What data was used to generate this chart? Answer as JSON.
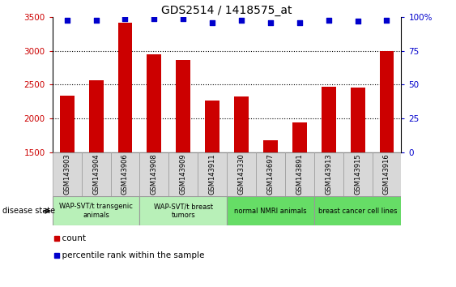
{
  "title": "GDS2514 / 1418575_at",
  "samples": [
    "GSM143903",
    "GSM143904",
    "GSM143906",
    "GSM143908",
    "GSM143909",
    "GSM143911",
    "GSM143330",
    "GSM143697",
    "GSM143891",
    "GSM143913",
    "GSM143915",
    "GSM143916"
  ],
  "counts": [
    2340,
    2560,
    3420,
    2950,
    2870,
    2270,
    2330,
    1680,
    1940,
    2470,
    2460,
    3000
  ],
  "percentiles": [
    98,
    98,
    99,
    99,
    99,
    96,
    98,
    96,
    96,
    98,
    97,
    98
  ],
  "bar_color": "#cc0000",
  "dot_color": "#0000cc",
  "ylim_left": [
    1500,
    3500
  ],
  "ylim_right": [
    0,
    100
  ],
  "yticks_left": [
    1500,
    2000,
    2500,
    3000,
    3500
  ],
  "yticks_right": [
    0,
    25,
    50,
    75,
    100
  ],
  "ytick_labels_right": [
    "0",
    "25",
    "50",
    "75",
    "100%"
  ],
  "gridlines": [
    2000,
    2500,
    3000
  ],
  "groups": [
    {
      "label": "WAP-SVT/t transgenic\nanimals",
      "start": 0,
      "end": 3,
      "color": "#b8f0b8"
    },
    {
      "label": "WAP-SVT/t breast\ntumors",
      "start": 3,
      "end": 6,
      "color": "#b8f0b8"
    },
    {
      "label": "normal NMRI animals",
      "start": 6,
      "end": 9,
      "color": "#66dd66"
    },
    {
      "label": "breast cancer cell lines",
      "start": 9,
      "end": 12,
      "color": "#66dd66"
    }
  ],
  "disease_state_label": "disease state",
  "legend_count_label": "count",
  "legend_percentile_label": "percentile rank within the sample",
  "tick_label_color_left": "#cc0000",
  "tick_label_color_right": "#0000cc",
  "background_color": "#ffffff",
  "tick_box_color": "#d8d8d8",
  "tick_box_edge_color": "#999999"
}
